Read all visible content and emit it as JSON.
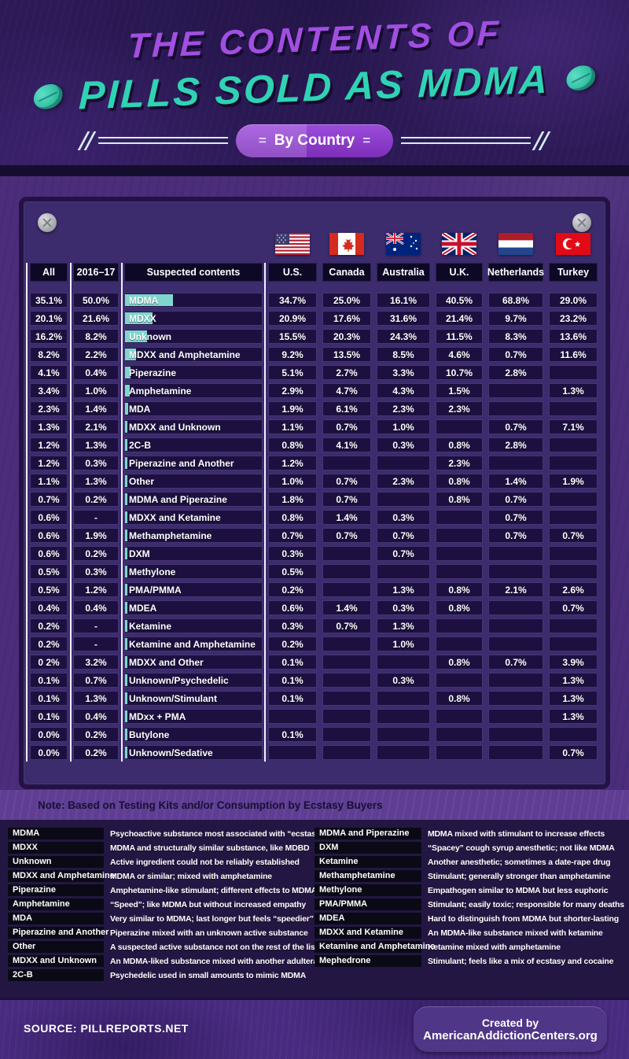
{
  "header": {
    "title_line1": "THE CONTENTS OF",
    "title_line2": "PILLS SOLD AS MDMA",
    "badge": "By Country"
  },
  "table": {
    "col_headers": {
      "all": "All",
      "period": "2016–17",
      "contents": "Suspected contents"
    },
    "countries": [
      {
        "key": "us",
        "label": "U.S."
      },
      {
        "key": "canada",
        "label": "Canada"
      },
      {
        "key": "australia",
        "label": "Australia"
      },
      {
        "key": "uk",
        "label": "U.K."
      },
      {
        "key": "netherlands",
        "label": "Netherlands"
      },
      {
        "key": "turkey",
        "label": "Turkey"
      }
    ]
  },
  "chart_data": {
    "type": "table",
    "title": "The Contents of Pills Sold as MDMA — By Country",
    "columns": [
      "All",
      "2016–17",
      "Suspected contents",
      "U.S.",
      "Canada",
      "Australia",
      "U.K.",
      "Netherlands",
      "Turkey"
    ],
    "rows": [
      [
        "35.1%",
        "50.0%",
        "MDMA",
        "34.7%",
        "25.0%",
        "16.1%",
        "40.5%",
        "68.8%",
        "29.0%"
      ],
      [
        "20.1%",
        "21.6%",
        "MDXX",
        "20.9%",
        "17.6%",
        "31.6%",
        "21.4%",
        "9.7%",
        "23.2%"
      ],
      [
        "16.2%",
        "8.2%",
        "Unknown",
        "15.5%",
        "20.3%",
        "24.3%",
        "11.5%",
        "8.3%",
        "13.6%"
      ],
      [
        "8.2%",
        "2.2%",
        "MDXX and Amphetamine",
        "9.2%",
        "13.5%",
        "8.5%",
        "4.6%",
        "0.7%",
        "11.6%"
      ],
      [
        "4.1%",
        "0.4%",
        "Piperazine",
        "5.1%",
        "2.7%",
        "3.3%",
        "10.7%",
        "2.8%",
        ""
      ],
      [
        "3.4%",
        "1.0%",
        "Amphetamine",
        "2.9%",
        "4.7%",
        "4.3%",
        "1.5%",
        "",
        "1.3%"
      ],
      [
        "2.3%",
        "1.4%",
        "MDA",
        "1.9%",
        "6.1%",
        "2.3%",
        "2.3%",
        "",
        ""
      ],
      [
        "1.3%",
        "2.1%",
        "MDXX and Unknown",
        "1.1%",
        "0.7%",
        "1.0%",
        "",
        "0.7%",
        "7.1%"
      ],
      [
        "1.2%",
        "1.3%",
        "2C-B",
        "0.8%",
        "4.1%",
        "0.3%",
        "0.8%",
        "2.8%",
        ""
      ],
      [
        "1.2%",
        "0.3%",
        "Piperazine and Another",
        "1.2%",
        "",
        "",
        "2.3%",
        "",
        ""
      ],
      [
        "1.1%",
        "1.3%",
        "Other",
        "1.0%",
        "0.7%",
        "2.3%",
        "0.8%",
        "1.4%",
        "1.9%"
      ],
      [
        "0.7%",
        "0.2%",
        "MDMA and Piperazine",
        "1.8%",
        "0.7%",
        "",
        "0.8%",
        "0.7%",
        ""
      ],
      [
        "0.6%",
        "-",
        "MDXX and Ketamine",
        "0.8%",
        "1.4%",
        "0.3%",
        "",
        "0.7%",
        ""
      ],
      [
        "0.6%",
        "1.9%",
        "Methamphetamine",
        "0.7%",
        "0.7%",
        "0.7%",
        "",
        "0.7%",
        "0.7%"
      ],
      [
        "0.6%",
        "0.2%",
        "DXM",
        "0.3%",
        "",
        "0.7%",
        "",
        "",
        ""
      ],
      [
        "0.5%",
        "0.3%",
        "Methylone",
        "0.5%",
        "",
        "",
        "",
        "",
        ""
      ],
      [
        "0.5%",
        "1.2%",
        "PMA/PMMA",
        "0.2%",
        "",
        "1.3%",
        "0.8%",
        "2.1%",
        "2.6%"
      ],
      [
        "0.4%",
        "0.4%",
        "MDEA",
        "0.6%",
        "1.4%",
        "0.3%",
        "0.8%",
        "",
        "0.7%"
      ],
      [
        "0.2%",
        "-",
        "Ketamine",
        "0.3%",
        "0.7%",
        "1.3%",
        "",
        "",
        ""
      ],
      [
        "0.2%",
        "-",
        "Ketamine and Amphetamine",
        "0.2%",
        "",
        "1.0%",
        "",
        "",
        ""
      ],
      [
        "0 2%",
        "3.2%",
        "MDXX and Other",
        "0.1%",
        "",
        "",
        "0.8%",
        "0.7%",
        "3.9%"
      ],
      [
        "0.1%",
        "0.7%",
        "Unknown/Psychedelic",
        "0.1%",
        "",
        "0.3%",
        "",
        "",
        "1.3%"
      ],
      [
        "0.1%",
        "1.3%",
        "Unknown/Stimulant",
        "0.1%",
        "",
        "",
        "0.8%",
        "",
        "1.3%"
      ],
      [
        "0.1%",
        "0.4%",
        "MDxx + PMA",
        "",
        "",
        "",
        "",
        "",
        "1.3%"
      ],
      [
        "0.0%",
        "0.2%",
        "Butylone",
        "0.1%",
        "",
        "",
        "",
        "",
        ""
      ],
      [
        "0.0%",
        "0.2%",
        "Unknown/Sedative",
        "",
        "",
        "",
        "",
        "",
        "0.7%"
      ]
    ]
  },
  "note": "Note: Based on Testing Kits and/or Consumption by Ecstasy Buyers",
  "glossary": {
    "left": [
      {
        "term": "MDMA",
        "def": "Psychoactive substance most associated with “ecstasy”"
      },
      {
        "term": "MDXX",
        "def": "MDMA and structurally similar substance, like MDBD"
      },
      {
        "term": "Unknown",
        "def": "Active ingredient could not be reliably established"
      },
      {
        "term": "MDXX and Amphetamine",
        "def": "MDMA or similar; mixed with amphetamine"
      },
      {
        "term": "Piperazine",
        "def": "Amphetamine-like stimulant; different effects to MDMA"
      },
      {
        "term": "Amphetamine",
        "def": "“Speed”; like MDMA but without increased empathy"
      },
      {
        "term": "MDA",
        "def": "Very similar to MDMA; last longer but feels “speedier”"
      },
      {
        "term": "Piperazine and Another",
        "def": "Piperazine mixed with an unknown active substance"
      },
      {
        "term": "Other",
        "def": "A suspected active substance not on the rest of the list"
      },
      {
        "term": "MDXX and Unknown",
        "def": "An MDMA-liked substance mixed with another adulterant"
      },
      {
        "term": "2C-B",
        "def": "Psychedelic used in small amounts to mimic MDMA"
      }
    ],
    "right": [
      {
        "term": "MDMA and Piperazine",
        "def": "MDMA mixed with stimulant to increase effects"
      },
      {
        "term": "DXM",
        "def": "“Spacey” cough syrup anesthetic; not like MDMA"
      },
      {
        "term": "Ketamine",
        "def": "Another anesthetic; sometimes a date-rape drug"
      },
      {
        "term": "Methamphetamine",
        "def": "Stimulant; generally stronger than amphetamine"
      },
      {
        "term": "Methylone",
        "def": "Empathogen similar to MDMA but less euphoric"
      },
      {
        "term": "PMA/PMMA",
        "def": "Stimulant; easily toxic; responsible for many deaths"
      },
      {
        "term": "MDEA",
        "def": "Hard to distinguish from MDMA but shorter-lasting"
      },
      {
        "term": "MDXX and Ketamine",
        "def": "An MDMA-like substance mixed with ketamine"
      },
      {
        "term": "Ketamine and Amphetamine",
        "def": "Ketamine mixed with amphetamine"
      },
      {
        "term": "Mephedrone",
        "def": "Stimulant; feels like a mix of ecstasy and cocaine"
      }
    ]
  },
  "footer": {
    "source": "SOURCE: PILLREPORTS.NET",
    "credit_line1": "Created by",
    "credit_line2": "AmericanAddictionCenters.org"
  },
  "colors": {
    "accent_purple": "#a14fe0",
    "accent_teal": "#2fd3b4",
    "bar_teal": "#7fd6ce",
    "panel_bg": "#3c2b6d",
    "cell_bg": "#1d1040"
  }
}
